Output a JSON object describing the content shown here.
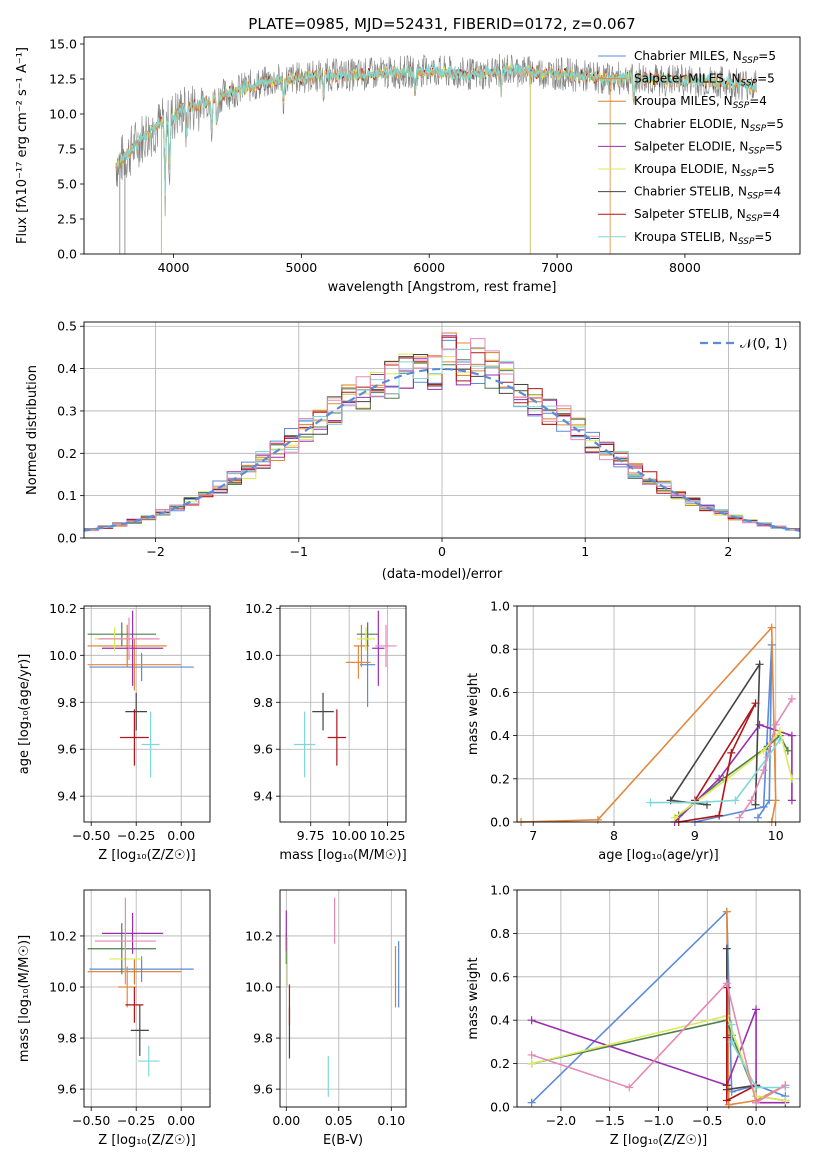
{
  "colors": {
    "chabrier_miles": "#5B8BD9",
    "salpeter_miles": "#E3893D",
    "kroupa_miles": "#D97F2A",
    "chabrier_elodie": "#4F7F4F",
    "salpeter_elodie": "#9B2FB0",
    "kroupa_elodie": "#D9EB57",
    "chabrier_stelib": "#444444",
    "salpeter_stelib": "#B0151B",
    "kroupa_stelib": "#7FD8D8",
    "pink": "#E589B5",
    "data": "#808080",
    "normal": "#5B8BD9"
  },
  "chart_data": [
    {
      "id": "spectrum",
      "type": "line",
      "title": "PLATE=0985, MJD=52431, FIBERID=0172, z=0.067",
      "xlabel": "wavelength [Angstrom, rest frame]",
      "ylabel": "Flux [fλ10⁻¹⁷ erg cm⁻² s⁻¹ A⁻¹]",
      "xlim": [
        3300,
        8900
      ],
      "ylim": [
        0,
        15.5
      ],
      "xticks": [
        4000,
        5000,
        6000,
        7000,
        8000
      ],
      "yticks": [
        0.0,
        2.5,
        5.0,
        7.5,
        10.0,
        12.5,
        15.0
      ],
      "ytick_labels": [
        "0.0",
        "2.5",
        "5.0",
        "7.5",
        "10.0",
        "12.5",
        "15.0"
      ],
      "continuum": {
        "x": [
          3550,
          3650,
          3750,
          3850,
          3950,
          4050,
          4200,
          4400,
          4600,
          4800,
          5000,
          5200,
          5400,
          5600,
          5800,
          6000,
          6200,
          6400,
          6600,
          6800,
          7000,
          7200,
          7400,
          7600,
          7800,
          8000,
          8200,
          8400,
          8550
        ],
        "y": [
          6.3,
          7.2,
          8.3,
          9.0,
          9.5,
          10.2,
          10.7,
          11.4,
          12.0,
          12.4,
          12.6,
          12.8,
          12.8,
          12.9,
          13.0,
          13.1,
          12.9,
          12.8,
          13.2,
          13.0,
          12.9,
          12.7,
          12.5,
          12.6,
          12.4,
          12.4,
          12.3,
          12.2,
          12.0
        ]
      },
      "legend_position": "upper right",
      "legend": [
        {
          "label": "Chabrier MILES, N",
          "sub": "SSP",
          "n": "=5",
          "color_key": "chabrier_miles"
        },
        {
          "label": "Salpeter MILES, N",
          "sub": "SSP",
          "n": "=5",
          "color_key": "salpeter_miles"
        },
        {
          "label": "Kroupa MILES, N",
          "sub": "SSP",
          "n": "=4",
          "color_key": "kroupa_miles"
        },
        {
          "label": "Chabrier ELODIE, N",
          "sub": "SSP",
          "n": "=5",
          "color_key": "chabrier_elodie"
        },
        {
          "label": "Salpeter ELODIE, N",
          "sub": "SSP",
          "n": "=5",
          "color_key": "salpeter_elodie"
        },
        {
          "label": "Kroupa ELODIE, N",
          "sub": "SSP",
          "n": "=5",
          "color_key": "kroupa_elodie"
        },
        {
          "label": "Chabrier STELIB, N",
          "sub": "SSP",
          "n": "=4",
          "color_key": "chabrier_stelib"
        },
        {
          "label": "Salpeter STELIB, N",
          "sub": "SSP",
          "n": "=4",
          "color_key": "salpeter_stelib"
        },
        {
          "label": "Kroupa STELIB, N",
          "sub": "SSP",
          "n": "=5",
          "color_key": "kroupa_stelib"
        }
      ],
      "grid": false
    },
    {
      "id": "residuals",
      "type": "line",
      "xlabel": "(data-model)/error",
      "ylabel": "Normed distribution",
      "xlim": [
        -2.5,
        2.5
      ],
      "ylim": [
        0,
        0.51
      ],
      "xticks": [
        -2,
        -1,
        0,
        1,
        2
      ],
      "xtick_labels": [
        "−2",
        "−1",
        "0",
        "1",
        "2"
      ],
      "yticks": [
        0.0,
        0.1,
        0.2,
        0.3,
        0.4,
        0.5
      ],
      "ytick_labels": [
        "0.0",
        "0.1",
        "0.2",
        "0.3",
        "0.4",
        "0.5"
      ],
      "legend": [
        {
          "label": "𝒩(0, 1)",
          "color_key": "normal"
        }
      ],
      "legend_position": "upper right",
      "grid": true
    },
    {
      "id": "age_vs_Z",
      "type": "scatter",
      "xlabel": "Z [log₁₀(Z/Z☉)]",
      "ylabel": "age  [log₁₀(age/yr)]",
      "xlim": [
        -0.54,
        0.16
      ],
      "ylim": [
        9.29,
        10.21
      ],
      "xticks": [
        -0.5,
        -0.25,
        0.0
      ],
      "xtick_labels": [
        "−0.50",
        "−0.25",
        "0.00"
      ],
      "yticks": [
        9.4,
        9.6,
        9.8,
        10.0,
        10.2
      ],
      "ytick_labels": [
        "9.4",
        "9.6",
        "9.8",
        "10.0",
        "10.2"
      ],
      "points": [
        {
          "x": -0.22,
          "xe": 0.29,
          "y": 9.95,
          "ye": 0.06,
          "color_key": "chabrier_miles"
        },
        {
          "x": -0.3,
          "xe": 0.22,
          "y": 10.04,
          "ye": 0.09,
          "color_key": "kroupa_miles"
        },
        {
          "x": -0.26,
          "xe": 0.26,
          "y": 9.96,
          "ye": 0.11,
          "color_key": "salpeter_miles"
        },
        {
          "x": -0.33,
          "xe": 0.19,
          "y": 10.09,
          "ye": 0.05,
          "color_key": "chabrier_elodie"
        },
        {
          "x": -0.27,
          "xe": 0.17,
          "y": 10.03,
          "ye": 0.16,
          "color_key": "salpeter_elodie"
        },
        {
          "x": -0.37,
          "xe": 0.11,
          "y": 10.07,
          "ye": 0.05,
          "color_key": "kroupa_elodie"
        },
        {
          "x": -0.25,
          "xe": 0.06,
          "y": 9.76,
          "ye": 0.08,
          "color_key": "chabrier_stelib"
        },
        {
          "x": -0.26,
          "xe": 0.08,
          "y": 9.65,
          "ye": 0.12,
          "color_key": "salpeter_stelib"
        },
        {
          "x": -0.17,
          "xe": 0.05,
          "y": 9.62,
          "ye": 0.14,
          "color_key": "kroupa_stelib"
        },
        {
          "x": -0.29,
          "xe": 0.17,
          "y": 10.07,
          "ye": 0.09,
          "color_key": "pink"
        }
      ],
      "grid": true
    },
    {
      "id": "age_vs_mass",
      "type": "scatter",
      "xlabel": "mass [log₁₀(M/M☉)]",
      "ylabel": "",
      "xlim": [
        9.55,
        10.37
      ],
      "ylim": [
        9.29,
        10.21
      ],
      "xticks": [
        9.75,
        10.0,
        10.25
      ],
      "xtick_labels": [
        "9.75",
        "10.00",
        "10.25"
      ],
      "yticks": [
        9.4,
        9.6,
        9.8,
        10.0,
        10.2
      ],
      "ytick_labels": [
        "9.4",
        "9.6",
        "9.8",
        "10.0",
        "10.2"
      ],
      "points": [
        {
          "x": 10.12,
          "xe": 0.05,
          "y": 9.96,
          "ye": 0.18,
          "color_key": "chabrier_miles"
        },
        {
          "x": 10.08,
          "xe": 0.05,
          "y": 10.04,
          "ye": 0.09,
          "color_key": "kroupa_miles"
        },
        {
          "x": 10.06,
          "xe": 0.08,
          "y": 9.97,
          "ye": 0.07,
          "color_key": "salpeter_miles"
        },
        {
          "x": 10.12,
          "xe": 0.07,
          "y": 10.09,
          "ye": 0.05,
          "color_key": "chabrier_elodie"
        },
        {
          "x": 10.19,
          "xe": 0.04,
          "y": 10.03,
          "ye": 0.16,
          "color_key": "salpeter_elodie"
        },
        {
          "x": 10.11,
          "xe": 0.06,
          "y": 10.07,
          "ye": 0.05,
          "color_key": "kroupa_elodie"
        },
        {
          "x": 9.83,
          "xe": 0.07,
          "y": 9.76,
          "ye": 0.08,
          "color_key": "chabrier_stelib"
        },
        {
          "x": 9.92,
          "xe": 0.06,
          "y": 9.65,
          "ye": 0.12,
          "color_key": "salpeter_stelib"
        },
        {
          "x": 9.71,
          "xe": 0.07,
          "y": 9.62,
          "ye": 0.14,
          "color_key": "kroupa_stelib"
        },
        {
          "x": 10.24,
          "xe": 0.07,
          "y": 10.04,
          "ye": 0.09,
          "color_key": "pink"
        }
      ],
      "grid": true
    },
    {
      "id": "weight_vs_age",
      "type": "line",
      "xlabel": "age  [log₁₀(age/yr)]",
      "ylabel": "mass weight",
      "xlim": [
        6.8,
        10.3
      ],
      "ylim": [
        0,
        1.0
      ],
      "xticks": [
        7,
        8,
        9,
        10
      ],
      "xtick_labels": [
        "7",
        "8",
        "9",
        "10"
      ],
      "yticks": [
        0.0,
        0.2,
        0.4,
        0.6,
        0.8,
        1.0
      ],
      "ytick_labels": [
        "0.0",
        "0.2",
        "0.4",
        "0.6",
        "0.8",
        "1.0"
      ],
      "series": [
        {
          "color_key": "chabrier_miles",
          "x": [
            9.0,
            9.85,
            9.95,
            9.92,
            9.78
          ],
          "y": [
            0.0,
            0.07,
            0.82,
            0.1,
            0.02
          ]
        },
        {
          "color_key": "salpeter_miles",
          "x": [
            6.85,
            7.8,
            9.95,
            10.0,
            9.95
          ],
          "y": [
            0.0,
            0.01,
            0.9,
            0.1,
            0.0
          ]
        },
        {
          "color_key": "chabrier_elodie",
          "x": [
            8.8,
            9.35,
            9.9,
            10.05,
            10.15
          ],
          "y": [
            0.03,
            0.2,
            0.35,
            0.4,
            0.33
          ]
        },
        {
          "color_key": "salpeter_elodie",
          "x": [
            8.75,
            9.3,
            9.8,
            10.2,
            10.2
          ],
          "y": [
            0.0,
            0.2,
            0.45,
            0.4,
            0.1
          ]
        },
        {
          "color_key": "kroupa_elodie",
          "x": [
            8.75,
            9.4,
            9.85,
            10.05,
            10.2
          ],
          "y": [
            0.02,
            0.2,
            0.33,
            0.42,
            0.2
          ]
        },
        {
          "color_key": "chabrier_stelib",
          "x": [
            9.75,
            9.8,
            8.7,
            9.15
          ],
          "y": [
            0.08,
            0.73,
            0.1,
            0.08
          ]
        },
        {
          "color_key": "salpeter_stelib",
          "x": [
            8.8,
            9.3,
            9.45,
            9.75,
            9.0
          ],
          "y": [
            0.0,
            0.03,
            0.32,
            0.55,
            0.1
          ]
        },
        {
          "color_key": "kroupa_stelib",
          "x": [
            8.45,
            9.0,
            9.5,
            9.9,
            10.05
          ],
          "y": [
            0.09,
            0.09,
            0.1,
            0.3,
            0.38
          ]
        },
        {
          "color_key": "pink",
          "x": [
            9.55,
            9.7,
            9.85,
            10.0,
            10.2
          ],
          "y": [
            0.02,
            0.1,
            0.24,
            0.45,
            0.57
          ]
        }
      ],
      "grid": true
    },
    {
      "id": "mass_vs_Z",
      "type": "scatter",
      "xlabel": "Z [log₁₀(Z/Z☉)]",
      "ylabel": "mass [log₁₀(M/M☉)]",
      "xlim": [
        -0.54,
        0.16
      ],
      "ylim": [
        9.53,
        10.38
      ],
      "xticks": [
        -0.5,
        -0.25,
        0.0
      ],
      "xtick_labels": [
        "−0.50",
        "−0.25",
        "0.00"
      ],
      "yticks": [
        9.6,
        9.8,
        10.0,
        10.2
      ],
      "ytick_labels": [
        "9.6",
        "9.8",
        "10.0",
        "10.2"
      ],
      "points": [
        {
          "x": -0.22,
          "xe": 0.29,
          "y": 10.07,
          "ye": 0.05,
          "color_key": "chabrier_miles"
        },
        {
          "x": -0.26,
          "xe": 0.26,
          "y": 10.06,
          "ye": 0.05,
          "color_key": "kroupa_miles"
        },
        {
          "x": -0.3,
          "xe": 0.05,
          "y": 10.0,
          "ye": 0.08,
          "color_key": "salpeter_miles"
        },
        {
          "x": -0.33,
          "xe": 0.19,
          "y": 10.15,
          "ye": 0.1,
          "color_key": "chabrier_elodie"
        },
        {
          "x": -0.27,
          "xe": 0.17,
          "y": 10.21,
          "ye": 0.08,
          "color_key": "salpeter_elodie"
        },
        {
          "x": -0.31,
          "xe": 0.09,
          "y": 10.11,
          "ye": 0.08,
          "color_key": "kroupa_elodie"
        },
        {
          "x": -0.23,
          "xe": 0.05,
          "y": 9.83,
          "ye": 0.1,
          "color_key": "chabrier_stelib"
        },
        {
          "x": -0.26,
          "xe": 0.05,
          "y": 9.93,
          "ye": 0.07,
          "color_key": "salpeter_stelib"
        },
        {
          "x": -0.18,
          "xe": 0.06,
          "y": 9.71,
          "ye": 0.06,
          "color_key": "kroupa_stelib"
        },
        {
          "x": -0.31,
          "xe": 0.17,
          "y": 10.18,
          "ye": 0.17,
          "color_key": "pink"
        }
      ],
      "grid": true
    },
    {
      "id": "mass_vs_ebv",
      "type": "scatter",
      "xlabel": "E(B-V)",
      "ylabel": "",
      "xlim": [
        -0.006,
        0.114
      ],
      "ylim": [
        9.53,
        10.38
      ],
      "xticks": [
        0.0,
        0.05,
        0.1
      ],
      "xtick_labels": [
        "0.00",
        "0.05",
        "0.10"
      ],
      "yticks": [
        9.6,
        9.8,
        10.0,
        10.2
      ],
      "ytick_labels": [
        "9.6",
        "9.8",
        "10.0",
        "10.2"
      ],
      "points": [
        {
          "x": 0.107,
          "ye": 0.13,
          "y": 10.05,
          "color_key": "chabrier_miles"
        },
        {
          "x": 0.104,
          "ye": 0.12,
          "y": 10.04,
          "color_key": "kroupa_miles"
        },
        {
          "x": 0.0,
          "ye": 0.06,
          "y": 10.15,
          "color_key": "chabrier_elodie"
        },
        {
          "x": 0.0,
          "ye": 0.08,
          "y": 10.22,
          "color_key": "salpeter_elodie"
        },
        {
          "x": 0.001,
          "ye": 0.1,
          "y": 10.1,
          "color_key": "kroupa_elodie"
        },
        {
          "x": 0.003,
          "ye": 0.1,
          "y": 9.82,
          "color_key": "chabrier_stelib"
        },
        {
          "x": 0.003,
          "ye": 0.08,
          "y": 9.93,
          "color_key": "salpeter_stelib"
        },
        {
          "x": 0.04,
          "ye": 0.08,
          "y": 9.65,
          "color_key": "kroupa_stelib"
        },
        {
          "x": 0.046,
          "ye": 0.09,
          "y": 10.26,
          "color_key": "pink"
        }
      ],
      "grid": true
    },
    {
      "id": "weight_vs_Z",
      "type": "line",
      "xlabel": "Z [log₁₀(Z/Z☉)]",
      "ylabel": "mass weight",
      "xlim": [
        -2.45,
        0.45
      ],
      "ylim": [
        0,
        1.0
      ],
      "xticks": [
        -2.0,
        -1.5,
        -1.0,
        -0.5,
        0.0
      ],
      "xtick_labels": [
        "−2.0",
        "−1.5",
        "−1.0",
        "−0.5",
        "0.0"
      ],
      "yticks": [
        0.0,
        0.2,
        0.4,
        0.6,
        0.8,
        1.0
      ],
      "ytick_labels": [
        "0.0",
        "0.2",
        "0.4",
        "0.6",
        "0.8",
        "1.0"
      ],
      "series": [
        {
          "color_key": "chabrier_miles",
          "x": [
            -2.3,
            -0.3,
            -0.25,
            0.0,
            0.3
          ],
          "y": [
            0.02,
            0.9,
            0.07,
            0.1,
            0.05
          ]
        },
        {
          "color_key": "salpeter_miles",
          "x": [
            -0.3,
            -0.28,
            0.0,
            0.3
          ],
          "y": [
            0.9,
            0.01,
            0.03,
            0.1
          ]
        },
        {
          "color_key": "chabrier_elodie",
          "x": [
            -2.3,
            -0.3,
            -0.25,
            0.0,
            0.3
          ],
          "y": [
            0.2,
            0.4,
            0.33,
            0.05,
            0.03
          ]
        },
        {
          "color_key": "salpeter_elodie",
          "x": [
            -2.3,
            -0.3,
            0.0,
            0.0,
            0.3
          ],
          "y": [
            0.4,
            0.1,
            0.45,
            0.02,
            0.02
          ]
        },
        {
          "color_key": "kroupa_elodie",
          "x": [
            -2.3,
            -0.3,
            0.0,
            0.3
          ],
          "y": [
            0.2,
            0.42,
            0.05,
            0.03
          ]
        },
        {
          "color_key": "chabrier_stelib",
          "x": [
            -0.3,
            -0.3,
            -0.3,
            0.0
          ],
          "y": [
            0.73,
            0.1,
            0.08,
            0.1
          ]
        },
        {
          "color_key": "salpeter_stelib",
          "x": [
            -0.3,
            -0.3,
            -0.3,
            0.0
          ],
          "y": [
            0.55,
            0.32,
            0.03,
            0.1
          ]
        },
        {
          "color_key": "kroupa_stelib",
          "x": [
            -0.25,
            -0.25,
            0.0,
            0.3
          ],
          "y": [
            0.38,
            0.3,
            0.09,
            0.09
          ]
        },
        {
          "color_key": "pink",
          "x": [
            -2.3,
            -1.3,
            -0.3,
            0.0,
            0.3
          ],
          "y": [
            0.24,
            0.09,
            0.57,
            0.02,
            0.1
          ]
        }
      ],
      "grid": true
    }
  ]
}
